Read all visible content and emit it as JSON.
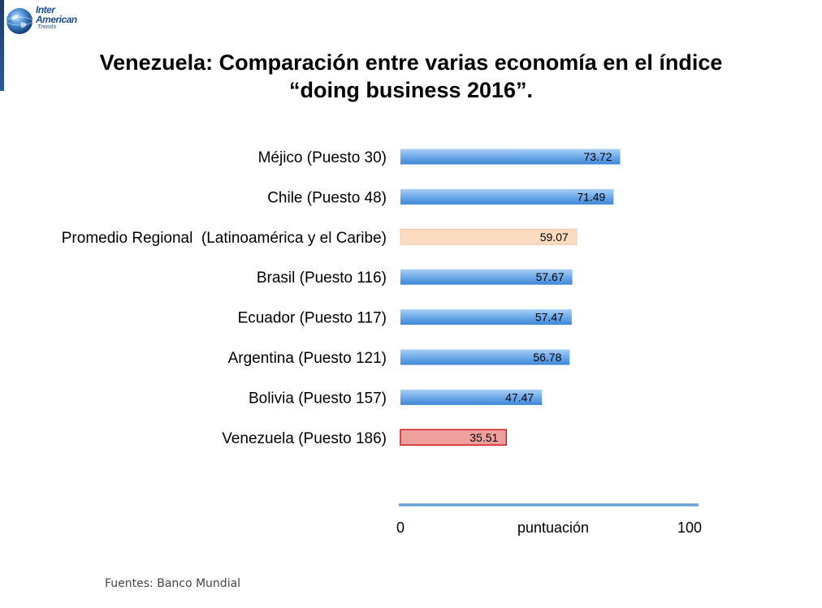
{
  "header": {
    "logo_line1": "Inter",
    "logo_line2": "American",
    "logo_line3": "Trends"
  },
  "title_line1": "Venezuela: Comparación entre varias economía en el índice",
  "title_line2": "“doing business 2016”.",
  "source": "Fuentes: Banco Mundial",
  "colors": {
    "default_bar": "#6aa7e8",
    "regional_bar": "#fcdcc0",
    "venezuela_bar": "#eea09e",
    "axis": "#6a9fd4"
  },
  "chart_data": {
    "type": "bar",
    "orientation": "horizontal",
    "categories": [
      "Méjico (Puesto 30)",
      "Chile (Puesto 48)",
      "Promedio Regional  (Latinoamérica y el Caribe)",
      "Brasil (Puesto 116)",
      "Ecuador (Puesto 117)",
      "Argentina (Puesto 121)",
      "Bolivia (Puesto 157)",
      "Venezuela (Puesto 186)"
    ],
    "values": [
      73.72,
      71.49,
      59.07,
      57.67,
      57.47,
      56.78,
      47.47,
      35.51
    ],
    "value_labels": [
      "73.72",
      "71.49",
      "59.07",
      "57.67",
      "57.47",
      "56.78",
      "47.47",
      "35.51"
    ],
    "bar_colors": [
      "#6aa7e8",
      "#6aa7e8",
      "#fcdcc0",
      "#6aa7e8",
      "#6aa7e8",
      "#6aa7e8",
      "#6aa7e8",
      "#eea09e"
    ],
    "xlabel": "puntuación",
    "xlim": [
      0,
      100
    ],
    "xticks": [
      "0",
      "100"
    ],
    "grid": false,
    "legend": "none"
  }
}
